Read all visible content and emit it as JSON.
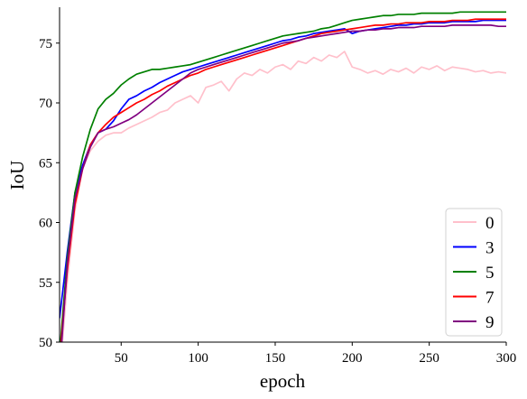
{
  "chart_data": {
    "type": "line",
    "title": "",
    "xlabel": "epoch",
    "ylabel": "IoU",
    "xlim": [
      10,
      300
    ],
    "ylim": [
      50,
      78
    ],
    "xticks": [
      50,
      100,
      150,
      200,
      250,
      300
    ],
    "yticks": [
      50,
      55,
      60,
      65,
      70,
      75
    ],
    "grid": false,
    "legend_position": "bottom-right",
    "x": [
      10,
      15,
      20,
      25,
      30,
      35,
      40,
      45,
      50,
      55,
      60,
      65,
      70,
      75,
      80,
      85,
      90,
      95,
      100,
      105,
      110,
      115,
      120,
      125,
      130,
      135,
      140,
      145,
      150,
      155,
      160,
      165,
      170,
      175,
      180,
      185,
      190,
      195,
      200,
      205,
      210,
      215,
      220,
      225,
      230,
      235,
      240,
      245,
      250,
      255,
      260,
      265,
      270,
      275,
      280,
      285,
      290,
      295,
      300
    ],
    "series": [
      {
        "name": "0",
        "color": "#ffc0cb",
        "values": [
          47.0,
          55.0,
          61.0,
          64.5,
          66.0,
          66.8,
          67.3,
          67.5,
          67.5,
          67.9,
          68.2,
          68.5,
          68.8,
          69.2,
          69.4,
          70.0,
          70.3,
          70.6,
          70.0,
          71.3,
          71.5,
          71.8,
          71.0,
          72.0,
          72.5,
          72.3,
          72.8,
          72.5,
          73.0,
          73.2,
          72.8,
          73.5,
          73.3,
          73.8,
          73.5,
          74.0,
          73.8,
          74.3,
          73.0,
          72.8,
          72.5,
          72.7,
          72.4,
          72.8,
          72.6,
          72.9,
          72.5,
          73.0,
          72.8,
          73.1,
          72.7,
          73.0,
          72.9,
          72.8,
          72.6,
          72.7,
          72.5,
          72.6,
          72.5
        ]
      },
      {
        "name": "3",
        "color": "#0000ff",
        "values": [
          52.0,
          57.5,
          62.5,
          64.8,
          66.5,
          67.5,
          67.8,
          68.5,
          69.5,
          70.3,
          70.6,
          71.0,
          71.3,
          71.7,
          72.0,
          72.3,
          72.6,
          72.8,
          73.0,
          73.2,
          73.4,
          73.6,
          73.8,
          74.0,
          74.2,
          74.4,
          74.6,
          74.8,
          75.0,
          75.2,
          75.3,
          75.5,
          75.6,
          75.8,
          75.9,
          76.0,
          76.1,
          76.2,
          75.8,
          76.0,
          76.1,
          76.2,
          76.3,
          76.4,
          76.5,
          76.5,
          76.6,
          76.6,
          76.7,
          76.7,
          76.7,
          76.8,
          76.8,
          76.8,
          76.8,
          76.9,
          76.9,
          76.9,
          76.9
        ]
      },
      {
        "name": "5",
        "color": "#008000",
        "values": [
          49.0,
          57.0,
          62.5,
          65.5,
          67.8,
          69.5,
          70.3,
          70.8,
          71.5,
          72.0,
          72.4,
          72.6,
          72.8,
          72.8,
          72.9,
          73.0,
          73.1,
          73.2,
          73.4,
          73.6,
          73.8,
          74.0,
          74.2,
          74.4,
          74.6,
          74.8,
          75.0,
          75.2,
          75.4,
          75.6,
          75.7,
          75.8,
          75.9,
          76.0,
          76.2,
          76.3,
          76.5,
          76.7,
          76.9,
          77.0,
          77.1,
          77.2,
          77.3,
          77.3,
          77.4,
          77.4,
          77.4,
          77.5,
          77.5,
          77.5,
          77.5,
          77.5,
          77.6,
          77.6,
          77.6,
          77.6,
          77.6,
          77.6,
          77.6
        ]
      },
      {
        "name": "7",
        "color": "#ff0000",
        "values": [
          48.5,
          56.0,
          61.5,
          64.5,
          66.5,
          67.5,
          68.2,
          68.8,
          69.2,
          69.6,
          70.0,
          70.3,
          70.7,
          71.0,
          71.4,
          71.7,
          72.0,
          72.3,
          72.5,
          72.8,
          73.0,
          73.2,
          73.4,
          73.6,
          73.8,
          74.0,
          74.2,
          74.4,
          74.6,
          74.8,
          75.0,
          75.2,
          75.4,
          75.6,
          75.8,
          75.9,
          76.0,
          76.1,
          76.2,
          76.3,
          76.4,
          76.5,
          76.5,
          76.6,
          76.6,
          76.7,
          76.7,
          76.7,
          76.8,
          76.8,
          76.8,
          76.9,
          76.9,
          76.9,
          77.0,
          77.0,
          77.0,
          77.0,
          77.0
        ]
      },
      {
        "name": "9",
        "color": "#800080",
        "values": [
          47.5,
          56.5,
          62.0,
          64.5,
          66.3,
          67.5,
          67.8,
          68.0,
          68.3,
          68.6,
          69.0,
          69.5,
          70.0,
          70.5,
          71.0,
          71.5,
          72.0,
          72.5,
          72.8,
          73.0,
          73.2,
          73.4,
          73.6,
          73.8,
          74.0,
          74.2,
          74.4,
          74.6,
          74.8,
          75.0,
          75.1,
          75.2,
          75.4,
          75.5,
          75.6,
          75.7,
          75.8,
          75.9,
          76.0,
          76.0,
          76.1,
          76.1,
          76.2,
          76.2,
          76.3,
          76.3,
          76.3,
          76.4,
          76.4,
          76.4,
          76.4,
          76.5,
          76.5,
          76.5,
          76.5,
          76.5,
          76.5,
          76.4,
          76.4
        ]
      }
    ]
  }
}
